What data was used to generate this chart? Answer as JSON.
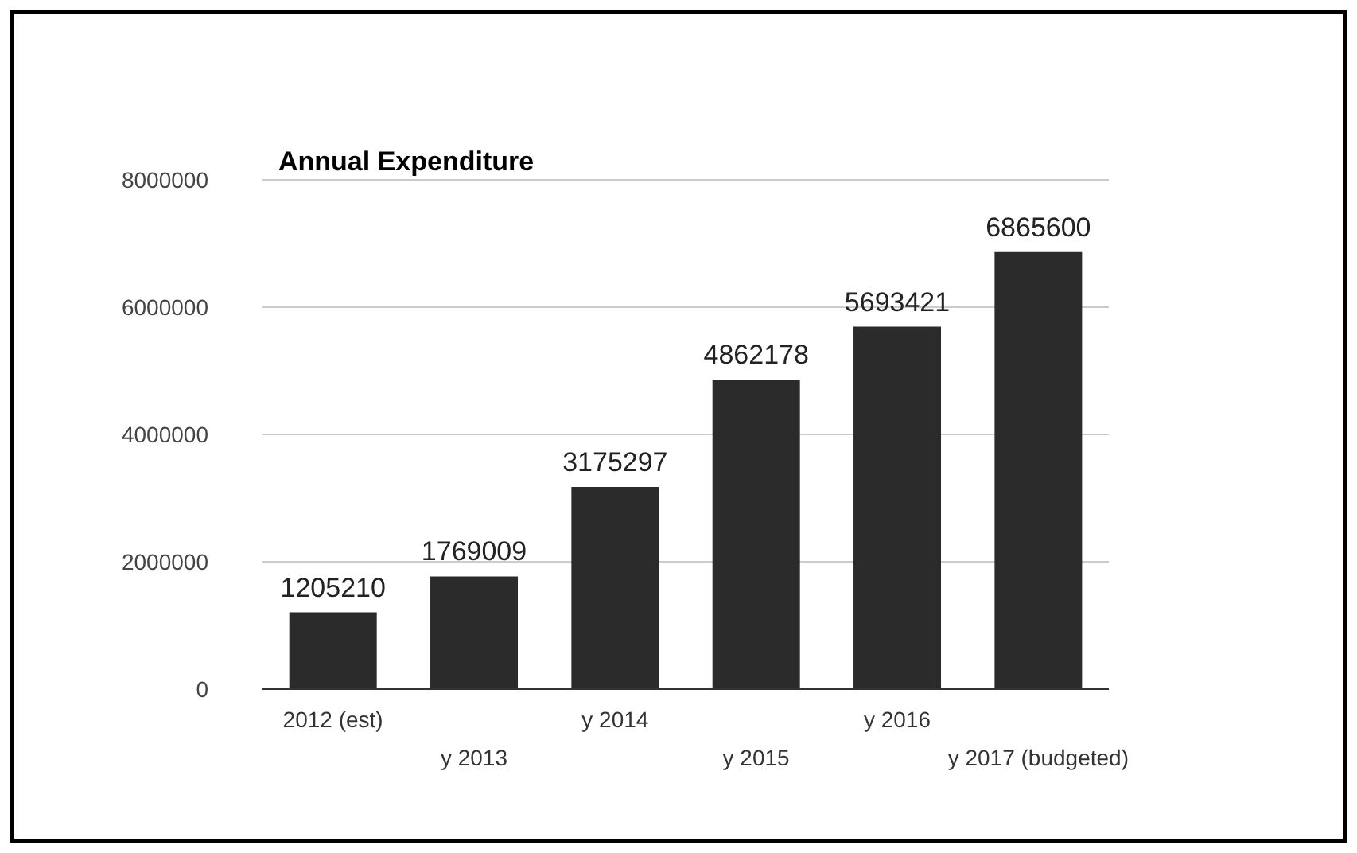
{
  "chart_data": {
    "type": "bar",
    "title": "Annual Expenditure",
    "categories": [
      "2012 (est)",
      "y 2013",
      "y 2014",
      "y 2015",
      "y 2016",
      "y 2017 (budgeted)"
    ],
    "values": [
      1205210,
      1769009,
      3175297,
      4862178,
      5693421,
      6865600
    ],
    "color": "#2b2b2b",
    "ylim": [
      0,
      8000000
    ],
    "yticks": [
      0,
      2000000,
      4000000,
      6000000,
      8000000
    ],
    "grid": "y",
    "data_labels": true
  }
}
